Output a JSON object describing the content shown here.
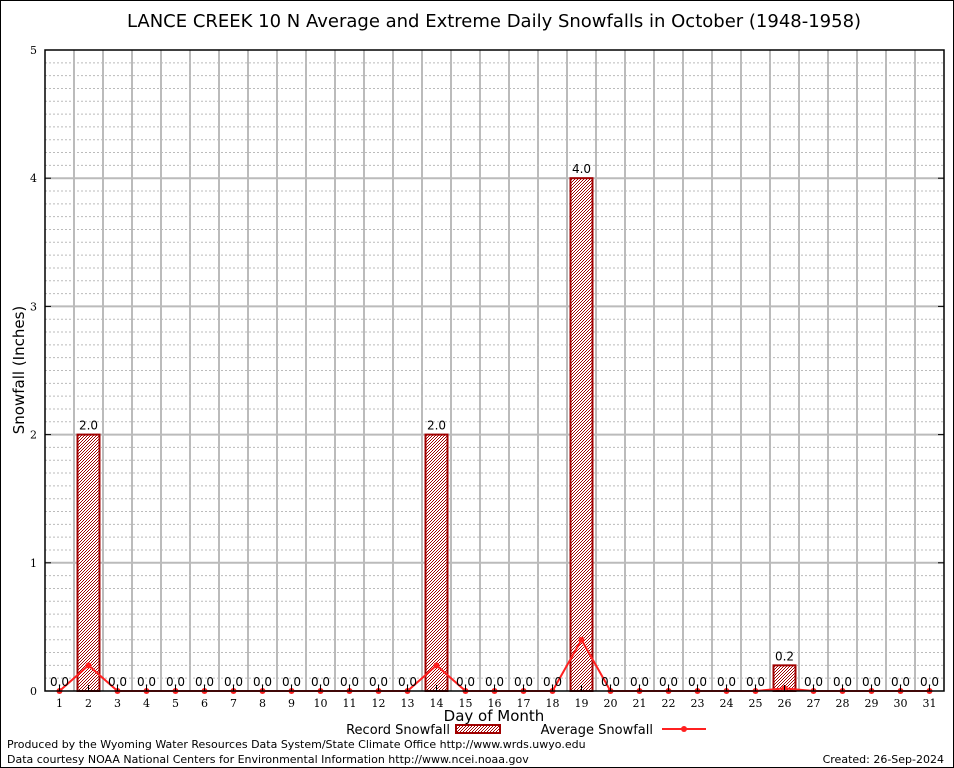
{
  "chart_data": {
    "type": "bar",
    "title": "LANCE CREEK 10 N Average and Extreme Daily Snowfalls in October (1948-1958)",
    "xlabel": "Day of Month",
    "ylabel": "Snowfall (Inches)",
    "ylim": [
      0,
      5
    ],
    "yticks": [
      "0",
      "1",
      "2",
      "3",
      "4",
      "5"
    ],
    "categories": [
      "1",
      "2",
      "3",
      "4",
      "5",
      "6",
      "7",
      "8",
      "9",
      "10",
      "11",
      "12",
      "13",
      "14",
      "15",
      "16",
      "17",
      "18",
      "19",
      "20",
      "21",
      "22",
      "23",
      "24",
      "25",
      "26",
      "27",
      "28",
      "29",
      "30",
      "31"
    ],
    "series": [
      {
        "name": "Record Snowfall",
        "type": "bar",
        "color": "#a00000",
        "values": [
          0,
          2.0,
          0,
          0,
          0,
          0,
          0,
          0,
          0,
          0,
          0,
          0,
          0,
          2.0,
          0,
          0,
          0,
          0,
          4.0,
          0,
          0,
          0,
          0,
          0,
          0,
          0.2,
          0,
          0,
          0,
          0,
          0
        ],
        "labels": [
          "0.0",
          "2.0",
          "0.0",
          "0.0",
          "0.0",
          "0.0",
          "0.0",
          "0.0",
          "0.0",
          "0.0",
          "0.0",
          "0.0",
          "0.0",
          "2.0",
          "0.0",
          "0.0",
          "0.0",
          "0.0",
          "4.0",
          "0.0",
          "0.0",
          "0.0",
          "0.0",
          "0.0",
          "0.0",
          "0.2",
          "0.0",
          "0.0",
          "0.0",
          "0.0",
          "0.0"
        ]
      },
      {
        "name": "Average Snowfall",
        "type": "line",
        "color": "#ff2020",
        "values": [
          0,
          0.2,
          0,
          0,
          0,
          0,
          0,
          0,
          0,
          0,
          0,
          0,
          0,
          0.2,
          0,
          0,
          0,
          0,
          0.4,
          0,
          0,
          0,
          0,
          0,
          0,
          0.02,
          0,
          0,
          0,
          0,
          0
        ]
      }
    ],
    "grid": true,
    "legend": "bottom-center"
  },
  "footer": {
    "line1": "Produced by the Wyoming Water Resources Data System/State Climate Office http://www.wrds.uwyo.edu",
    "line2": "Data courtesy NOAA National Centers for Environmental Information http://www.ncei.noaa.gov",
    "created": "Created: 26-Sep-2024"
  }
}
